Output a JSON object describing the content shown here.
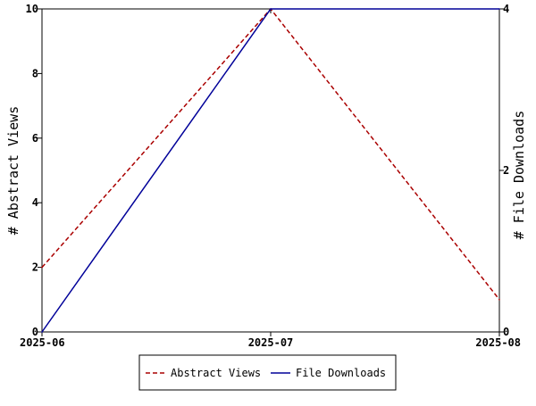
{
  "chart_data": {
    "type": "line",
    "x": [
      "2025-06",
      "2025-07",
      "2025-08"
    ],
    "ylabel": "# Abstract Views",
    "y2label": "# File Downloads",
    "ylim": [
      0,
      10
    ],
    "y2lim": [
      0,
      4
    ],
    "yticks": [
      0,
      2,
      4,
      6,
      8,
      10
    ],
    "y2ticks": [
      0,
      2,
      4
    ],
    "grid": false,
    "legend_position": "bottom-center",
    "series": [
      {
        "name": "Abstract Views",
        "axis": "left",
        "values": [
          2,
          10,
          1
        ],
        "color": "#aa0000",
        "style": "dashed"
      },
      {
        "name": "File Downloads",
        "axis": "right",
        "values": [
          0,
          4,
          4
        ],
        "color": "#000099",
        "style": "solid"
      }
    ]
  }
}
